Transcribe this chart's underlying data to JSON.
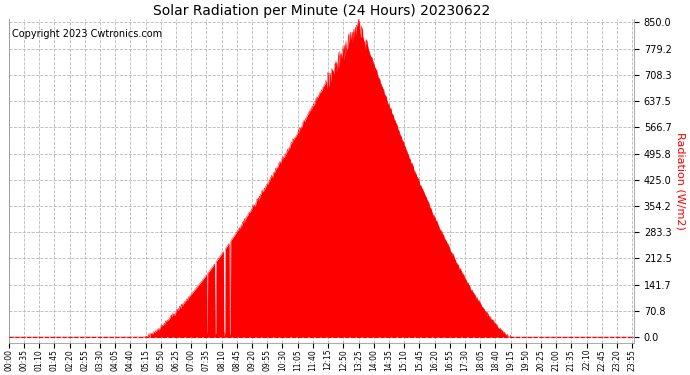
{
  "title": "Solar Radiation per Minute (24 Hours) 20230622",
  "copyright": "Copyright 2023 Cwtronics.com",
  "ylabel": "Radiation (W/m2)",
  "ylabel_color": "#ff0000",
  "copyright_color": "#000000",
  "title_color": "#000000",
  "fill_color": "#ff0000",
  "line_color": "#ff0000",
  "background_color": "#ffffff",
  "grid_color": "#b0b0b0",
  "ymax": 850.0,
  "yticks": [
    0.0,
    70.8,
    141.7,
    212.5,
    283.3,
    354.2,
    425.0,
    495.8,
    566.7,
    637.5,
    708.3,
    779.2,
    850.0
  ],
  "dashed_line_color": "#ff0000",
  "sunrise_min": 315,
  "sunset_min": 1155,
  "peak_min": 805,
  "peak_val": 855
}
